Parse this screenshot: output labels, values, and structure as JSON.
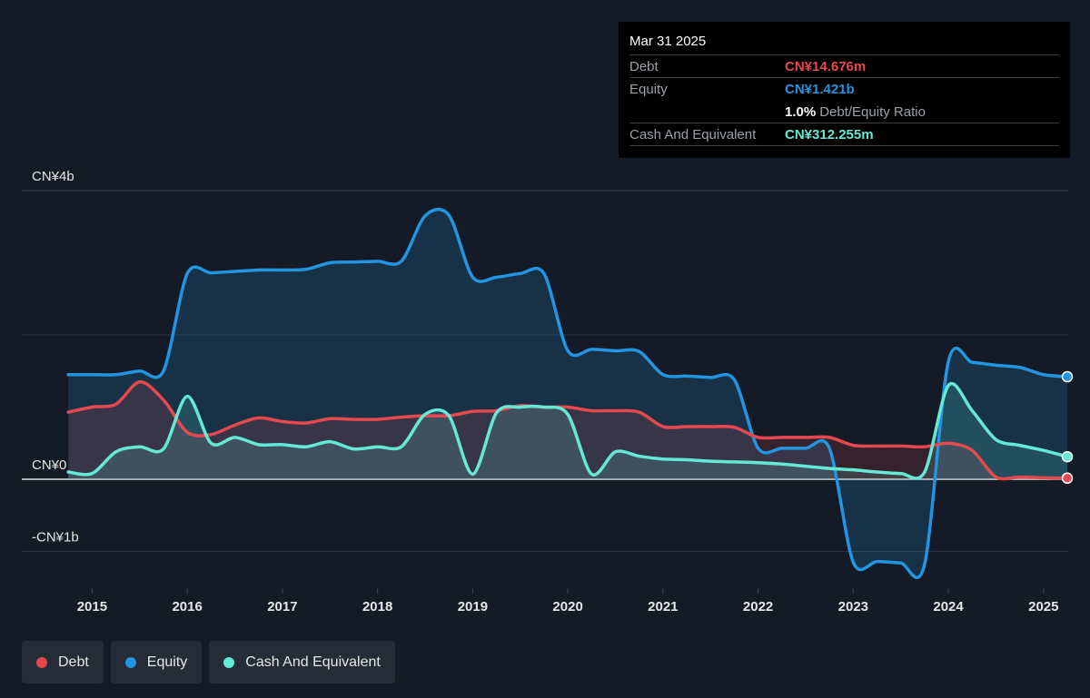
{
  "tooltip": {
    "date": "Mar 31 2025",
    "debt_label": "Debt",
    "debt_value": "CN¥14.676m",
    "equity_label": "Equity",
    "equity_value": "CN¥1.421b",
    "ratio_value": "1.0%",
    "ratio_label": "Debt/Equity Ratio",
    "cash_label": "Cash And Equivalent",
    "cash_value": "CN¥312.255m"
  },
  "legend": [
    {
      "label": "Debt",
      "color": "#e64850"
    },
    {
      "label": "Equity",
      "color": "#2394df"
    },
    {
      "label": "Cash And Equivalent",
      "color": "#66e8d6"
    }
  ],
  "chart_data": {
    "type": "area",
    "y_tick_labels": [
      "CN¥4b",
      "CN¥0",
      "-CN¥1b"
    ],
    "ylim": [
      -1.5,
      4
    ],
    "x_tick_labels": [
      "2015",
      "2016",
      "2017",
      "2018",
      "2019",
      "2020",
      "2021",
      "2022",
      "2023",
      "2024",
      "2025"
    ],
    "xlim": [
      2014.7,
      2025.25
    ],
    "grid": true,
    "legend_position": "bottom-left",
    "series": [
      {
        "name": "Debt",
        "color": "#e64850",
        "points": [
          [
            2014.75,
            0.93
          ],
          [
            2015.0,
            1.0
          ],
          [
            2015.25,
            1.04
          ],
          [
            2015.5,
            1.35
          ],
          [
            2015.75,
            1.1
          ],
          [
            2016.0,
            0.65
          ],
          [
            2016.25,
            0.62
          ],
          [
            2016.5,
            0.75
          ],
          [
            2016.75,
            0.85
          ],
          [
            2017.0,
            0.8
          ],
          [
            2017.25,
            0.78
          ],
          [
            2017.5,
            0.84
          ],
          [
            2017.75,
            0.83
          ],
          [
            2018.0,
            0.83
          ],
          [
            2018.25,
            0.86
          ],
          [
            2018.5,
            0.88
          ],
          [
            2018.75,
            0.88
          ],
          [
            2019.0,
            0.94
          ],
          [
            2019.25,
            0.95
          ],
          [
            2019.5,
            1.02
          ],
          [
            2019.75,
            1.0
          ],
          [
            2020.0,
            1.0
          ],
          [
            2020.25,
            0.95
          ],
          [
            2020.5,
            0.95
          ],
          [
            2020.75,
            0.93
          ],
          [
            2021.0,
            0.73
          ],
          [
            2021.25,
            0.73
          ],
          [
            2021.5,
            0.73
          ],
          [
            2021.75,
            0.72
          ],
          [
            2022.0,
            0.58
          ],
          [
            2022.25,
            0.58
          ],
          [
            2022.5,
            0.58
          ],
          [
            2022.75,
            0.58
          ],
          [
            2023.0,
            0.47
          ],
          [
            2023.25,
            0.46
          ],
          [
            2023.5,
            0.46
          ],
          [
            2023.75,
            0.45
          ],
          [
            2024.0,
            0.5
          ],
          [
            2024.25,
            0.4
          ],
          [
            2024.5,
            0.03
          ],
          [
            2024.75,
            0.03
          ],
          [
            2025.0,
            0.02
          ],
          [
            2025.25,
            0.015
          ]
        ]
      },
      {
        "name": "Equity",
        "color": "#2394df",
        "points": [
          [
            2014.75,
            1.45
          ],
          [
            2015.0,
            1.45
          ],
          [
            2015.25,
            1.45
          ],
          [
            2015.5,
            1.5
          ],
          [
            2015.75,
            1.5
          ],
          [
            2016.0,
            2.85
          ],
          [
            2016.25,
            2.86
          ],
          [
            2016.5,
            2.88
          ],
          [
            2016.75,
            2.9
          ],
          [
            2017.0,
            2.9
          ],
          [
            2017.25,
            2.91
          ],
          [
            2017.5,
            3.0
          ],
          [
            2017.75,
            3.01
          ],
          [
            2018.0,
            3.02
          ],
          [
            2018.25,
            3.02
          ],
          [
            2018.5,
            3.65
          ],
          [
            2018.75,
            3.66
          ],
          [
            2019.0,
            2.8
          ],
          [
            2019.25,
            2.8
          ],
          [
            2019.5,
            2.85
          ],
          [
            2019.75,
            2.85
          ],
          [
            2020.0,
            1.78
          ],
          [
            2020.25,
            1.8
          ],
          [
            2020.5,
            1.78
          ],
          [
            2020.75,
            1.77
          ],
          [
            2021.0,
            1.45
          ],
          [
            2021.25,
            1.43
          ],
          [
            2021.5,
            1.41
          ],
          [
            2021.75,
            1.38
          ],
          [
            2022.0,
            0.43
          ],
          [
            2022.25,
            0.43
          ],
          [
            2022.5,
            0.43
          ],
          [
            2022.75,
            0.43
          ],
          [
            2023.0,
            -1.15
          ],
          [
            2023.25,
            -1.14
          ],
          [
            2023.5,
            -1.16
          ],
          [
            2023.75,
            -1.18
          ],
          [
            2024.0,
            1.63
          ],
          [
            2024.25,
            1.62
          ],
          [
            2024.5,
            1.58
          ],
          [
            2024.75,
            1.55
          ],
          [
            2025.0,
            1.45
          ],
          [
            2025.25,
            1.421
          ]
        ]
      },
      {
        "name": "Cash And Equivalent",
        "color": "#66e8d6",
        "points": [
          [
            2014.75,
            0.1
          ],
          [
            2015.0,
            0.08
          ],
          [
            2015.25,
            0.38
          ],
          [
            2015.5,
            0.45
          ],
          [
            2015.75,
            0.42
          ],
          [
            2016.0,
            1.15
          ],
          [
            2016.25,
            0.5
          ],
          [
            2016.5,
            0.58
          ],
          [
            2016.75,
            0.48
          ],
          [
            2017.0,
            0.48
          ],
          [
            2017.25,
            0.45
          ],
          [
            2017.5,
            0.52
          ],
          [
            2017.75,
            0.42
          ],
          [
            2018.0,
            0.45
          ],
          [
            2018.25,
            0.45
          ],
          [
            2018.5,
            0.9
          ],
          [
            2018.75,
            0.88
          ],
          [
            2019.0,
            0.07
          ],
          [
            2019.25,
            0.92
          ],
          [
            2019.5,
            1.0
          ],
          [
            2019.75,
            1.0
          ],
          [
            2020.0,
            0.9
          ],
          [
            2020.25,
            0.07
          ],
          [
            2020.5,
            0.38
          ],
          [
            2020.75,
            0.32
          ],
          [
            2021.0,
            0.28
          ],
          [
            2021.25,
            0.27
          ],
          [
            2021.5,
            0.25
          ],
          [
            2021.75,
            0.24
          ],
          [
            2022.0,
            0.23
          ],
          [
            2022.25,
            0.21
          ],
          [
            2022.5,
            0.18
          ],
          [
            2022.75,
            0.15
          ],
          [
            2023.0,
            0.13
          ],
          [
            2023.25,
            0.1
          ],
          [
            2023.5,
            0.08
          ],
          [
            2023.75,
            0.1
          ],
          [
            2024.0,
            1.3
          ],
          [
            2024.25,
            0.95
          ],
          [
            2024.5,
            0.55
          ],
          [
            2024.75,
            0.47
          ],
          [
            2025.0,
            0.4
          ],
          [
            2025.25,
            0.312
          ]
        ]
      }
    ]
  }
}
